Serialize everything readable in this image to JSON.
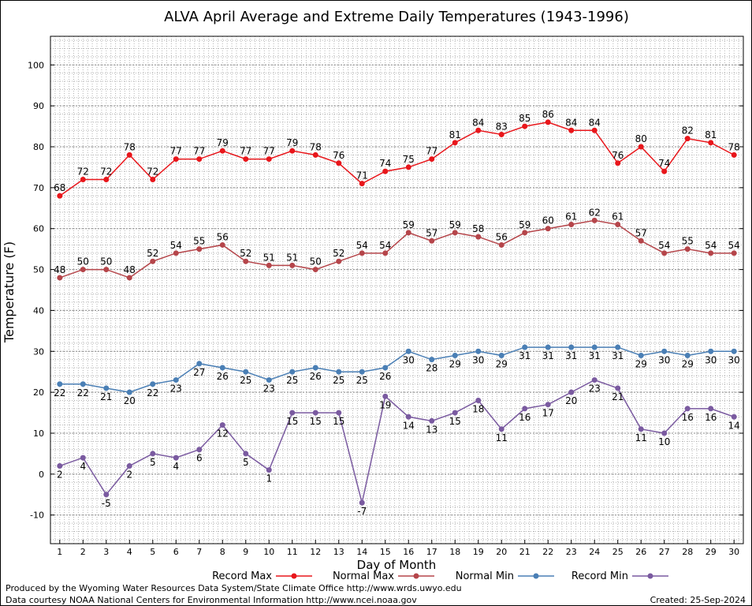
{
  "chart_data": {
    "type": "line",
    "title": "ALVA April Average and Extreme Daily Temperatures (1943-1996)",
    "xlabel": "Day of Month",
    "ylabel": "Temperature (F)",
    "x": [
      1,
      2,
      3,
      4,
      5,
      6,
      7,
      8,
      9,
      10,
      11,
      12,
      13,
      14,
      15,
      16,
      17,
      18,
      19,
      20,
      21,
      22,
      23,
      24,
      25,
      26,
      27,
      28,
      29,
      30
    ],
    "xlim": [
      0.6,
      30.4
    ],
    "ylim": [
      -17,
      107
    ],
    "yticks": [
      -10,
      0,
      10,
      20,
      30,
      40,
      50,
      60,
      70,
      80,
      90,
      100
    ],
    "grid": true,
    "legend_position": "bottom",
    "series": [
      {
        "name": "Record Max",
        "color": "#e8161b",
        "values": [
          68,
          72,
          72,
          78,
          72,
          77,
          77,
          79,
          77,
          77,
          79,
          78,
          76,
          71,
          74,
          75,
          77,
          81,
          84,
          83,
          85,
          86,
          84,
          84,
          76,
          80,
          74,
          82,
          81,
          78
        ]
      },
      {
        "name": "Normal Max",
        "color": "#b5454a",
        "values": [
          48,
          50,
          50,
          48,
          52,
          54,
          55,
          56,
          52,
          51,
          51,
          50,
          52,
          54,
          54,
          59,
          57,
          59,
          58,
          56,
          59,
          60,
          61,
          62,
          61,
          57,
          54,
          55,
          54,
          54
        ]
      },
      {
        "name": "Normal Min",
        "color": "#4a7fb5",
        "values": [
          22,
          22,
          21,
          20,
          22,
          23,
          27,
          26,
          25,
          23,
          25,
          26,
          25,
          25,
          26,
          30,
          28,
          29,
          30,
          29,
          31,
          31,
          31,
          31,
          31,
          29,
          30,
          29,
          30,
          30
        ]
      },
      {
        "name": "Record Min",
        "color": "#7a5aa0",
        "values": [
          2,
          4,
          -5,
          2,
          5,
          4,
          6,
          12,
          5,
          1,
          15,
          15,
          15,
          -7,
          19,
          14,
          13,
          15,
          18,
          11,
          16,
          17,
          20,
          23,
          21,
          11,
          10,
          16,
          16,
          14
        ]
      }
    ]
  },
  "footer": {
    "produced_by": "Produced by the Wyoming Water Resources Data System/State Climate Office http://www.wrds.uwyo.edu",
    "courtesy": "Data courtesy NOAA National Centers for Environmental Information http://www.ncei.noaa.gov",
    "created": "Created:  25-Sep-2024"
  }
}
